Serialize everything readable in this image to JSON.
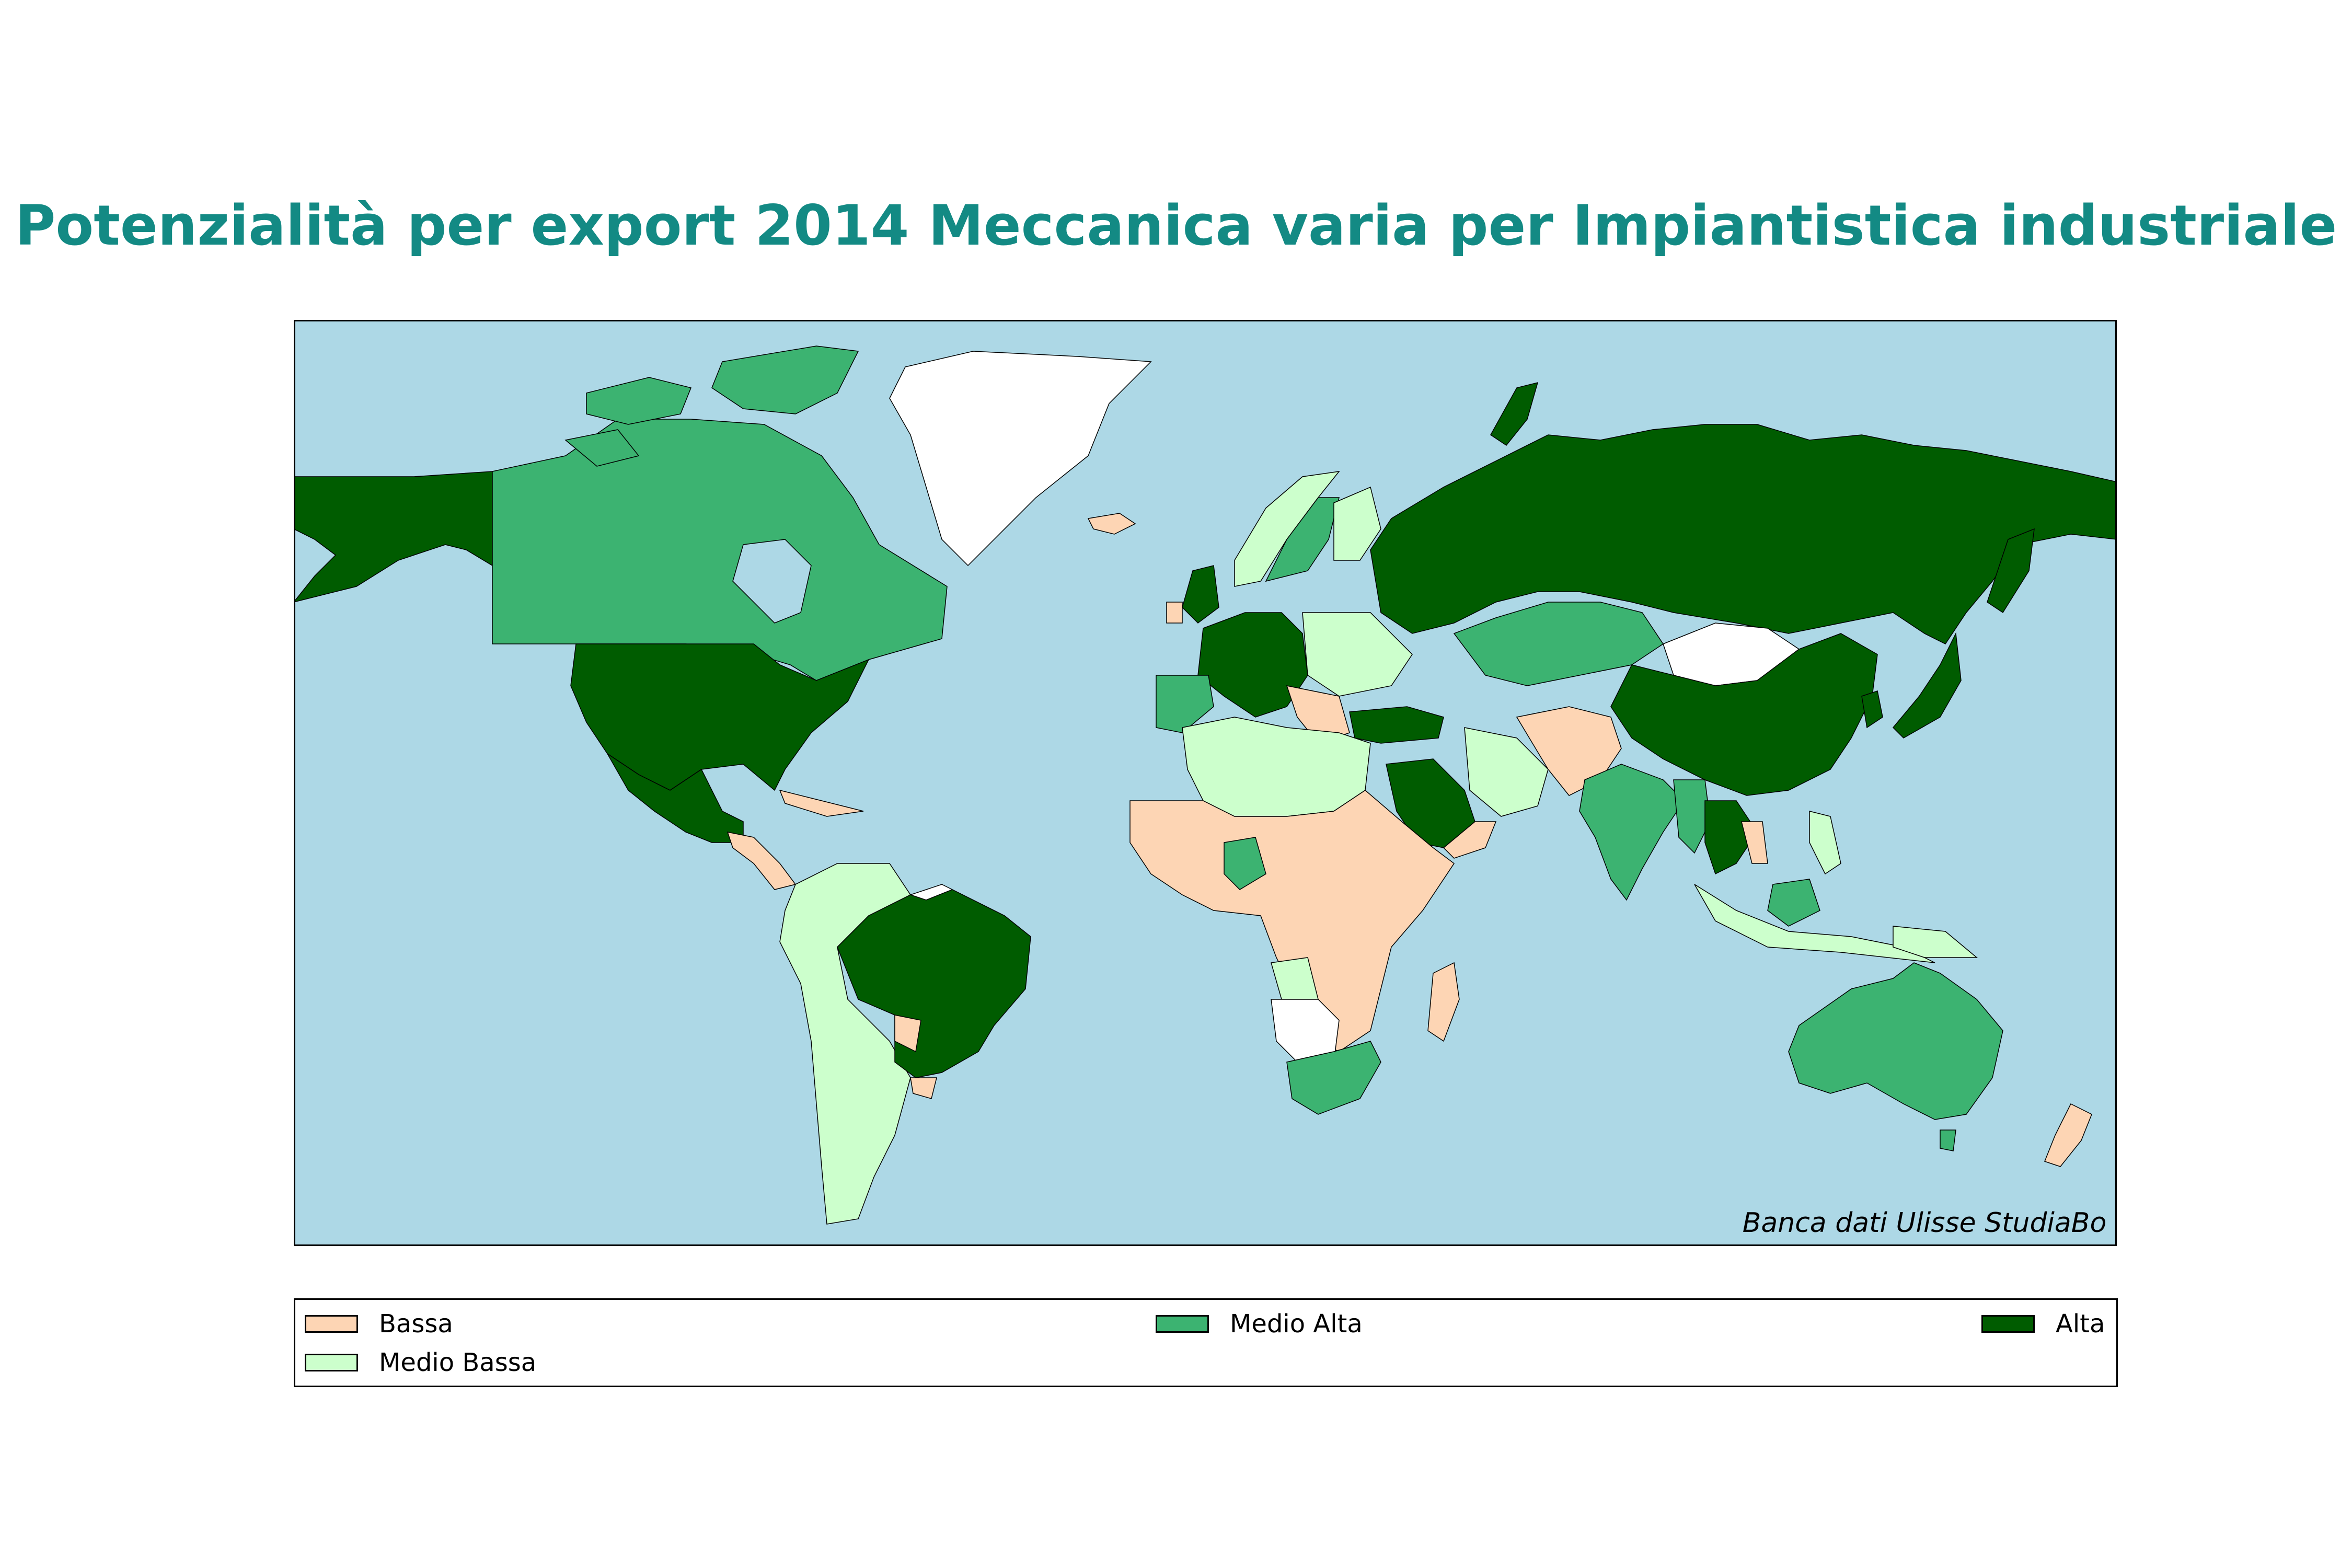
{
  "title": "Potenzialità per export 2014 Meccanica varia per Impiantistica industriale",
  "source": "Banca dati Ulisse StudiaBo",
  "colors": {
    "title": "#138a84",
    "ocean": "#add8e6",
    "bassa": "#fdd5b4",
    "medio_bassa": "#ccffcc",
    "medio_alta": "#3cb371",
    "alta": "#005c00",
    "no_data": "#ffffff"
  },
  "legend": [
    {
      "label": "Bassa",
      "color": "#fdd5b4"
    },
    {
      "label": "Medio Bassa",
      "color": "#ccffcc"
    },
    {
      "label": "Medio Alta",
      "color": "#3cb371"
    },
    {
      "label": "Alta",
      "color": "#005c00"
    }
  ]
}
